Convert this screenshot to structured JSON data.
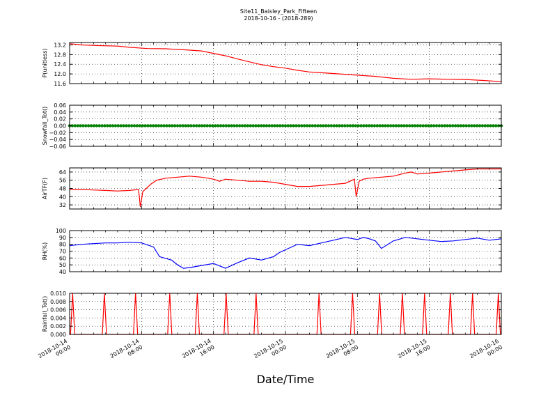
{
  "figure": {
    "title_line1": "Site11_Baisley_Park_Fifteen",
    "title_line2": "2018-10-16 - (2018-289)",
    "xlabel": "Date/Time"
  },
  "chart_data": [
    {
      "type": "line",
      "ylabel": "P(unitless)",
      "ylim": [
        11.6,
        13.3
      ],
      "yticks": [
        "13.2",
        "12.8",
        "12.4",
        "12.0",
        "11.6"
      ],
      "ytick_values": [
        13.2,
        12.8,
        12.4,
        12.0,
        11.6
      ],
      "color": "#ff0000",
      "grid": true,
      "x": [
        0,
        2,
        5,
        8,
        10,
        13,
        16,
        19,
        22,
        24,
        26,
        28,
        30,
        32,
        34,
        36,
        38,
        40,
        42,
        45,
        48,
        51,
        54,
        57,
        60,
        63,
        66,
        69,
        72
      ],
      "values": [
        13.25,
        13.2,
        13.17,
        13.15,
        13.1,
        13.05,
        13.04,
        13.0,
        12.95,
        12.85,
        12.75,
        12.62,
        12.5,
        12.38,
        12.3,
        12.24,
        12.15,
        12.08,
        12.05,
        12.0,
        11.95,
        11.9,
        11.82,
        11.78,
        11.8,
        11.78,
        11.77,
        11.73,
        11.68
      ]
    },
    {
      "type": "scatter",
      "ylabel": "Snowfall_Tot()",
      "ylim": [
        -0.06,
        0.06
      ],
      "yticks": [
        "0.06",
        "0.04",
        "0.02",
        "0.00",
        "−0.02",
        "−0.04",
        "−0.06"
      ],
      "ytick_values": [
        0.06,
        0.04,
        0.02,
        0.0,
        -0.02,
        -0.04,
        -0.06
      ],
      "color": "#008000",
      "grid": true,
      "x": [
        0,
        72
      ],
      "values": [
        0.0,
        0.0
      ],
      "note_constant": 0.0
    },
    {
      "type": "line",
      "ylabel": "AirTF(F)",
      "ylim": [
        28,
        68
      ],
      "yticks": [
        "64",
        "56",
        "48",
        "40",
        "32"
      ],
      "ytick_values": [
        64,
        56,
        48,
        40,
        32
      ],
      "color": "#ff0000",
      "grid": true,
      "x": [
        0,
        2,
        4,
        6,
        8,
        10,
        11.5,
        11.8,
        12.2,
        12.8,
        13.5,
        14.5,
        16,
        18,
        20,
        22,
        24,
        25,
        26,
        28,
        30,
        32,
        34,
        36,
        38,
        40,
        42,
        44,
        46,
        47.5,
        47.8,
        48.3,
        49,
        50,
        52,
        54,
        56,
        57,
        58,
        60,
        62,
        64,
        66,
        68,
        70,
        72
      ],
      "values": [
        47,
        47,
        46.5,
        46,
        45.5,
        46,
        47,
        30,
        45,
        48,
        52,
        56,
        58,
        59,
        60,
        59,
        57,
        55,
        57,
        56,
        55,
        55,
        54,
        52,
        50,
        50,
        51,
        52,
        53,
        57,
        40,
        55,
        57,
        58,
        59,
        60,
        63,
        64,
        62,
        63,
        64,
        65,
        66,
        67,
        67,
        67
      ]
    },
    {
      "type": "line",
      "ylabel": "RH(%)",
      "ylim": [
        40,
        100
      ],
      "yticks": [
        "100",
        "90",
        "80",
        "70",
        "60",
        "50",
        "40"
      ],
      "ytick_values": [
        100,
        90,
        80,
        70,
        60,
        50,
        40
      ],
      "color": "#0000ff",
      "grid": true,
      "x": [
        0,
        2,
        4,
        6,
        8,
        10,
        12,
        14,
        15,
        17,
        18,
        19,
        20,
        22,
        24,
        26,
        28,
        30,
        32,
        34,
        35,
        36,
        38,
        40,
        42,
        44,
        46,
        48,
        49,
        50,
        51,
        52,
        54,
        56,
        58,
        60,
        62,
        64,
        66,
        68,
        70,
        72
      ],
      "values": [
        78,
        80,
        81,
        82,
        82,
        83,
        82,
        76,
        62,
        57,
        50,
        45,
        46,
        49,
        52,
        45,
        53,
        60,
        57,
        62,
        68,
        72,
        80,
        78,
        82,
        86,
        90,
        87,
        90,
        88,
        85,
        74,
        85,
        90,
        88,
        86,
        84,
        85,
        87,
        89,
        86,
        88
      ]
    },
    {
      "type": "line",
      "ylabel": "Rainfall_Tot()",
      "ylim": [
        0,
        0.01
      ],
      "yticks": [
        "0.010",
        "0.008",
        "0.006",
        "0.004",
        "0.002",
        "0.000"
      ],
      "ytick_values": [
        0.01,
        0.008,
        0.006,
        0.004,
        0.002,
        0.0
      ],
      "color": "#ff0000",
      "grid": true,
      "spike_x": [
        0.5,
        5.8,
        11,
        16.7,
        21.3,
        26.1,
        31.1,
        41.6,
        47.2,
        51.7,
        55.5,
        59.2,
        63.5,
        67.2,
        71.5
      ],
      "spike_value": 0.01,
      "baseline": 0.0
    }
  ],
  "x_axis": {
    "range_hours": [
      0,
      72
    ],
    "ticks": [
      {
        "hours": 0,
        "line1": "2018-10-14",
        "line2": "00:00"
      },
      {
        "hours": 12,
        "line1": "2018-10-14",
        "line2": "08:00"
      },
      {
        "hours": 24,
        "line1": "2018-10-14",
        "line2": "16:00"
      },
      {
        "hours": 36,
        "line1": "2018-10-15",
        "line2": "00:00"
      },
      {
        "hours": 48,
        "line1": "2018-10-15",
        "line2": "08:00"
      },
      {
        "hours": 60,
        "line1": "2018-10-15",
        "line2": "16:00"
      },
      {
        "hours": 72,
        "line1": "2018-10-16",
        "line2": "00:00"
      }
    ]
  }
}
